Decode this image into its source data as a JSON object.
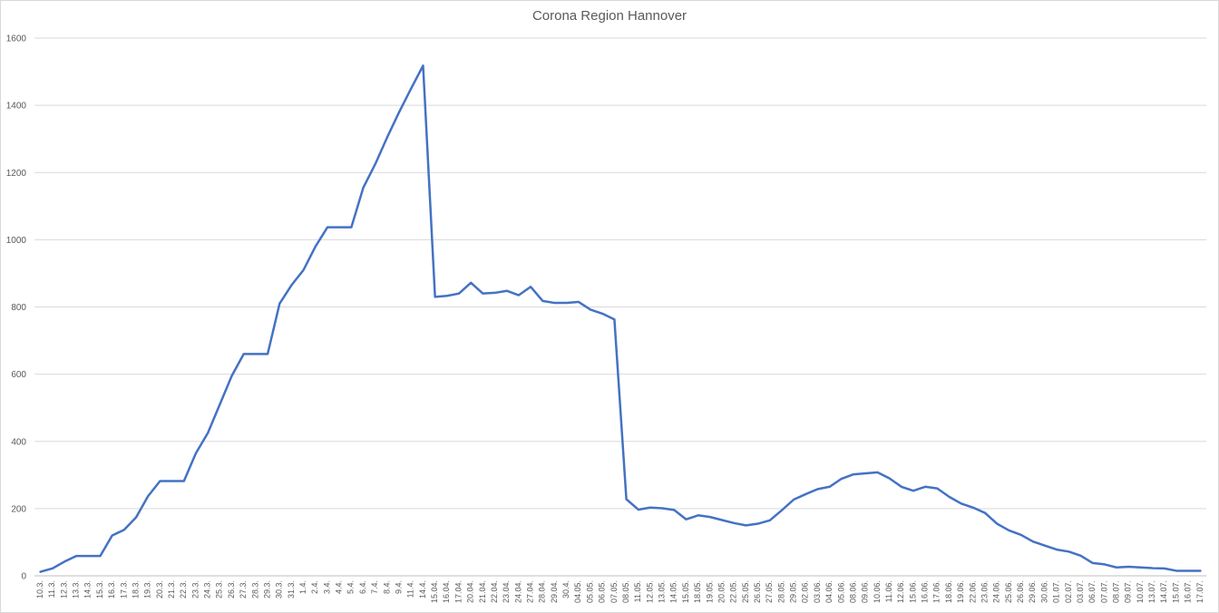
{
  "chart_data": {
    "type": "line",
    "title": "Corona Region Hannover",
    "xlabel": "",
    "ylabel": "",
    "ylim": [
      0,
      1600
    ],
    "yticks": [
      0,
      200,
      400,
      600,
      800,
      1000,
      1200,
      1400,
      1600
    ],
    "grid": true,
    "legend": "none",
    "line_color": "#4472c4",
    "x": [
      "10.3.",
      "11.3.",
      "12.3.",
      "13.3.",
      "14.3.",
      "15.3.",
      "16.3.",
      "17.3.",
      "18.3.",
      "19.3.",
      "20.3.",
      "21.3.",
      "22.3.",
      "23.3.",
      "24.3.",
      "25.3.",
      "26.3.",
      "27.3.",
      "28.3.",
      "29.3.",
      "30.3.",
      "31.3.",
      "1.4.",
      "2.4.",
      "3.4.",
      "4.4.",
      "5.4.",
      "6.4.",
      "7.4.",
      "8.4.",
      "9.4.",
      "11.4.",
      "14.4.",
      "15.04.",
      "16.04.",
      "17.04.",
      "20.04.",
      "21.04.",
      "22.04.",
      "23.04.",
      "24.04.",
      "27.04.",
      "28.04.",
      "29.04.",
      "30.4.",
      "04.05.",
      "05.05.",
      "06.05.",
      "07.05.",
      "08.05.",
      "11.05.",
      "12.05.",
      "13.05.",
      "14.05.",
      "15.05.",
      "18.05.",
      "19.05.",
      "20.05.",
      "22.05.",
      "25.05.",
      "26.05.",
      "27.05.",
      "28.05.",
      "29.05.",
      "02.06.",
      "03.06.",
      "04.06.",
      "05.06.",
      "08.06.",
      "09.06.",
      "10.06.",
      "11.06.",
      "12.06.",
      "15.06.",
      "16.06.",
      "17.06.",
      "18.06.",
      "19.06.",
      "22.06.",
      "23.06.",
      "24.06.",
      "25.06.",
      "26.06.",
      "29.06.",
      "30.06.",
      "01.07.",
      "02.07.",
      "03.07.",
      "06.07.",
      "07.07.",
      "08.07.",
      "09.07.",
      "10.07.",
      "13.07.",
      "14.07.",
      "15.07.",
      "16.07.",
      "17.07."
    ],
    "series": [
      {
        "values": [
          12,
          22,
          42,
          59,
          59,
          59,
          120,
          137,
          174,
          237,
          282,
          282,
          282,
          365,
          425,
          510,
          595,
          660,
          660,
          660,
          810,
          865,
          910,
          980,
          1037,
          1037,
          1037,
          1155,
          1225,
          1305,
          1380,
          1450,
          1518,
          830,
          833,
          840,
          872,
          840,
          842,
          848,
          835,
          860,
          818,
          812,
          812,
          815,
          792,
          780,
          763,
          228,
          197,
          203,
          201,
          196,
          168,
          180,
          175,
          166,
          157,
          150,
          155,
          165,
          195,
          227,
          243,
          258,
          265,
          289,
          302,
          305,
          308,
          290,
          265,
          253,
          265,
          260,
          235,
          215,
          203,
          187,
          155,
          135,
          122,
          102,
          90,
          78,
          72,
          60,
          38,
          34,
          25,
          27,
          25,
          23,
          22,
          15,
          15,
          15
        ]
      }
    ]
  }
}
